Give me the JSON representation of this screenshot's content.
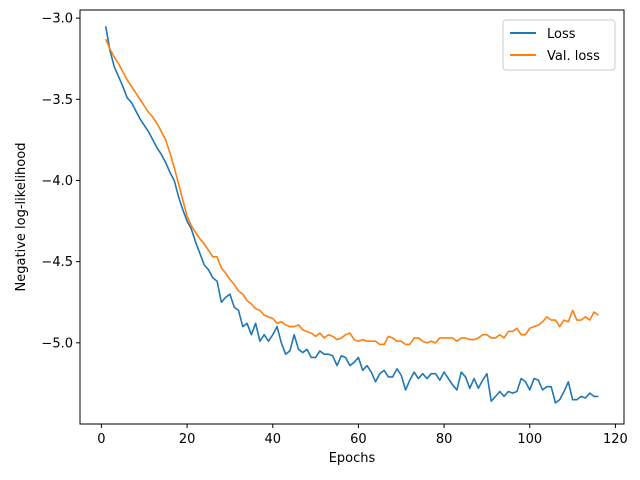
{
  "chart_data": {
    "type": "line",
    "title": "",
    "xlabel": "Epochs",
    "ylabel": "Negative log-likelihood",
    "xlim": [
      -5,
      122
    ],
    "ylim": [
      -5.5,
      -2.95
    ],
    "xticks": [
      0,
      20,
      40,
      60,
      80,
      100,
      120
    ],
    "yticks": [
      -5.0,
      -4.5,
      -4.0,
      -3.5,
      -3.0
    ],
    "xtick_labels": [
      "0",
      "20",
      "40",
      "60",
      "80",
      "100",
      "120"
    ],
    "ytick_labels": [
      "−5.0",
      "−4.5",
      "−4.0",
      "−3.5",
      "−3.0"
    ],
    "grid": false,
    "legend_position": "top-right",
    "series": [
      {
        "name": "Loss",
        "color": "#1f77b4",
        "x": [
          1,
          2,
          3,
          4,
          5,
          6,
          7,
          8,
          9,
          10,
          11,
          12,
          13,
          14,
          15,
          16,
          17,
          18,
          19,
          20,
          21,
          22,
          23,
          24,
          25,
          26,
          27,
          28,
          29,
          30,
          31,
          32,
          33,
          34,
          35,
          36,
          37,
          38,
          39,
          40,
          41,
          42,
          43,
          44,
          45,
          46,
          47,
          48,
          49,
          50,
          51,
          52,
          53,
          54,
          55,
          56,
          57,
          58,
          59,
          60,
          61,
          62,
          63,
          64,
          65,
          66,
          67,
          68,
          69,
          70,
          71,
          72,
          73,
          74,
          75,
          76,
          77,
          78,
          79,
          80,
          81,
          82,
          83,
          84,
          85,
          86,
          87,
          88,
          89,
          90,
          91,
          92,
          93,
          94,
          95,
          96,
          97,
          98,
          99,
          100,
          101,
          102,
          103,
          104,
          105,
          106,
          107,
          108,
          109,
          110,
          111,
          112,
          113,
          114,
          115,
          116
        ],
        "values": [
          -3.05,
          -3.2,
          -3.3,
          -3.36,
          -3.42,
          -3.49,
          -3.52,
          -3.57,
          -3.62,
          -3.66,
          -3.7,
          -3.75,
          -3.8,
          -3.84,
          -3.89,
          -3.95,
          -4.0,
          -4.1,
          -4.18,
          -4.25,
          -4.3,
          -4.38,
          -4.45,
          -4.52,
          -4.55,
          -4.6,
          -4.62,
          -4.75,
          -4.72,
          -4.7,
          -4.78,
          -4.8,
          -4.9,
          -4.88,
          -4.95,
          -4.88,
          -4.99,
          -4.95,
          -4.99,
          -4.95,
          -4.9,
          -5.0,
          -5.07,
          -5.05,
          -4.95,
          -5.04,
          -5.06,
          -5.04,
          -5.09,
          -5.09,
          -5.05,
          -5.07,
          -5.07,
          -5.08,
          -5.14,
          -5.08,
          -5.09,
          -5.14,
          -5.12,
          -5.09,
          -5.17,
          -5.14,
          -5.18,
          -5.24,
          -5.19,
          -5.17,
          -5.21,
          -5.21,
          -5.16,
          -5.2,
          -5.29,
          -5.23,
          -5.18,
          -5.22,
          -5.19,
          -5.22,
          -5.19,
          -5.19,
          -5.23,
          -5.18,
          -5.22,
          -5.26,
          -5.29,
          -5.18,
          -5.21,
          -5.28,
          -5.22,
          -5.28,
          -5.23,
          -5.19,
          -5.36,
          -5.33,
          -5.3,
          -5.33,
          -5.3,
          -5.31,
          -5.3,
          -5.22,
          -5.24,
          -5.29,
          -5.22,
          -5.23,
          -5.29,
          -5.27,
          -5.27,
          -5.37,
          -5.35,
          -5.3,
          -5.24,
          -5.35,
          -5.35,
          -5.33,
          -5.34,
          -5.31,
          -5.33,
          -5.33
        ]
      },
      {
        "name": "Val. loss",
        "color": "#ff7f0e",
        "x": [
          1,
          2,
          3,
          4,
          5,
          6,
          7,
          8,
          9,
          10,
          11,
          12,
          13,
          14,
          15,
          16,
          17,
          18,
          19,
          20,
          21,
          22,
          23,
          24,
          25,
          26,
          27,
          28,
          29,
          30,
          31,
          32,
          33,
          34,
          35,
          36,
          37,
          38,
          39,
          40,
          41,
          42,
          43,
          44,
          45,
          46,
          47,
          48,
          49,
          50,
          51,
          52,
          53,
          54,
          55,
          56,
          57,
          58,
          59,
          60,
          61,
          62,
          63,
          64,
          65,
          66,
          67,
          68,
          69,
          70,
          71,
          72,
          73,
          74,
          75,
          76,
          77,
          78,
          79,
          80,
          81,
          82,
          83,
          84,
          85,
          86,
          87,
          88,
          89,
          90,
          91,
          92,
          93,
          94,
          95,
          96,
          97,
          98,
          99,
          100,
          101,
          102,
          103,
          104,
          105,
          106,
          107,
          108,
          109,
          110,
          111,
          112,
          113,
          114,
          115,
          116
        ],
        "values": [
          -3.13,
          -3.19,
          -3.24,
          -3.28,
          -3.33,
          -3.38,
          -3.42,
          -3.46,
          -3.5,
          -3.54,
          -3.58,
          -3.61,
          -3.65,
          -3.7,
          -3.75,
          -3.83,
          -3.92,
          -4.02,
          -4.12,
          -4.22,
          -4.28,
          -4.32,
          -4.36,
          -4.39,
          -4.43,
          -4.47,
          -4.47,
          -4.54,
          -4.57,
          -4.61,
          -4.64,
          -4.68,
          -4.7,
          -4.74,
          -4.76,
          -4.79,
          -4.8,
          -4.83,
          -4.84,
          -4.85,
          -4.88,
          -4.87,
          -4.89,
          -4.9,
          -4.9,
          -4.89,
          -4.92,
          -4.93,
          -4.94,
          -4.96,
          -4.94,
          -4.97,
          -4.95,
          -4.96,
          -4.98,
          -4.97,
          -4.95,
          -4.94,
          -4.98,
          -4.99,
          -4.98,
          -4.99,
          -4.99,
          -4.99,
          -5.01,
          -5.01,
          -4.96,
          -4.97,
          -4.99,
          -4.99,
          -5.01,
          -5.01,
          -4.97,
          -4.97,
          -4.99,
          -5.0,
          -4.99,
          -5.0,
          -4.97,
          -4.97,
          -4.97,
          -4.97,
          -4.99,
          -4.97,
          -4.97,
          -4.98,
          -4.98,
          -4.97,
          -4.95,
          -4.95,
          -4.97,
          -4.97,
          -4.95,
          -4.97,
          -4.93,
          -4.93,
          -4.91,
          -4.95,
          -4.95,
          -4.91,
          -4.9,
          -4.89,
          -4.87,
          -4.84,
          -4.86,
          -4.86,
          -4.9,
          -4.86,
          -4.87,
          -4.8,
          -4.86,
          -4.86,
          -4.84,
          -4.86,
          -4.81,
          -4.83
        ]
      }
    ]
  }
}
